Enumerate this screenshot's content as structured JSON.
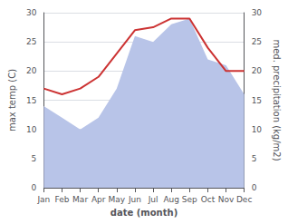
{
  "chart_data": {
    "type": "line",
    "categories": [
      "Jan",
      "Feb",
      "Mar",
      "Apr",
      "May",
      "Jun",
      "Jul",
      "Aug",
      "Sep",
      "Oct",
      "Nov",
      "Dec"
    ],
    "xlabel": "date (month)",
    "ylabel": "max temp (C)",
    "y2label": "med. precipitation (kg/m2)",
    "series": [
      {
        "type": "area",
        "color": "#b8c4e8",
        "values": [
          14,
          12,
          10,
          12,
          17,
          26,
          25,
          28,
          29,
          22,
          21,
          16
        ]
      },
      {
        "type": "line",
        "color": "#cc3333",
        "values": [
          17,
          16,
          17,
          19,
          23,
          27,
          27.5,
          29,
          29,
          24,
          20,
          20
        ]
      }
    ],
    "ylim": [
      0,
      30
    ],
    "yticks": [
      0,
      5,
      10,
      15,
      20,
      25,
      30
    ],
    "y2lim": [
      0,
      30
    ],
    "y2ticks": [
      0,
      5,
      10,
      15,
      20,
      25,
      30
    ],
    "grid": true
  }
}
